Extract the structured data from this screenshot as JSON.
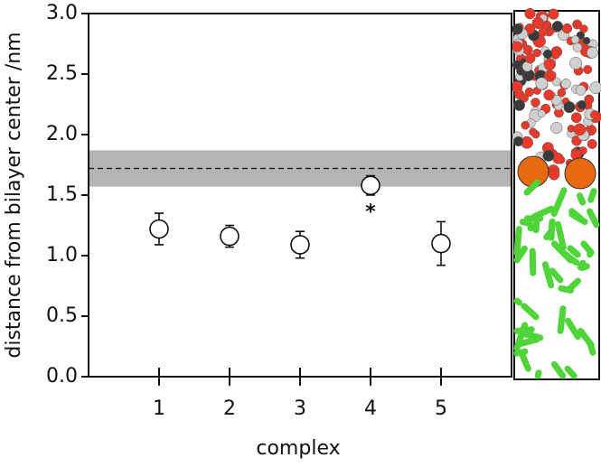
{
  "chart_data": {
    "type": "scatter",
    "xlabel": "complex",
    "ylabel": "distance from bilayer center /nm",
    "x": [
      1,
      2,
      3,
      4,
      5
    ],
    "series": [
      {
        "values": [
          1.22,
          1.16,
          1.09,
          1.58,
          1.1
        ],
        "errors": [
          0.13,
          0.09,
          0.11,
          0.08,
          0.18
        ],
        "color": "#ffffff"
      }
    ],
    "reference_line": 1.72,
    "band": [
      1.57,
      1.87
    ],
    "band_color": "#b3b6b4",
    "annotations": [
      {
        "text": "*",
        "x": 4,
        "y": 1.4
      }
    ],
    "xlim": [
      0,
      6
    ],
    "xticks": [
      1,
      2,
      3,
      4,
      5
    ],
    "ylim": [
      0,
      3
    ],
    "yticks": [
      {
        "value": 0,
        "label": "0.0"
      },
      0.5,
      {
        "value": 1,
        "label": "1.0"
      },
      1.5,
      {
        "value": 2,
        "label": "2.0"
      },
      2.5,
      {
        "value": 3,
        "label": "3.0"
      }
    ]
  }
}
